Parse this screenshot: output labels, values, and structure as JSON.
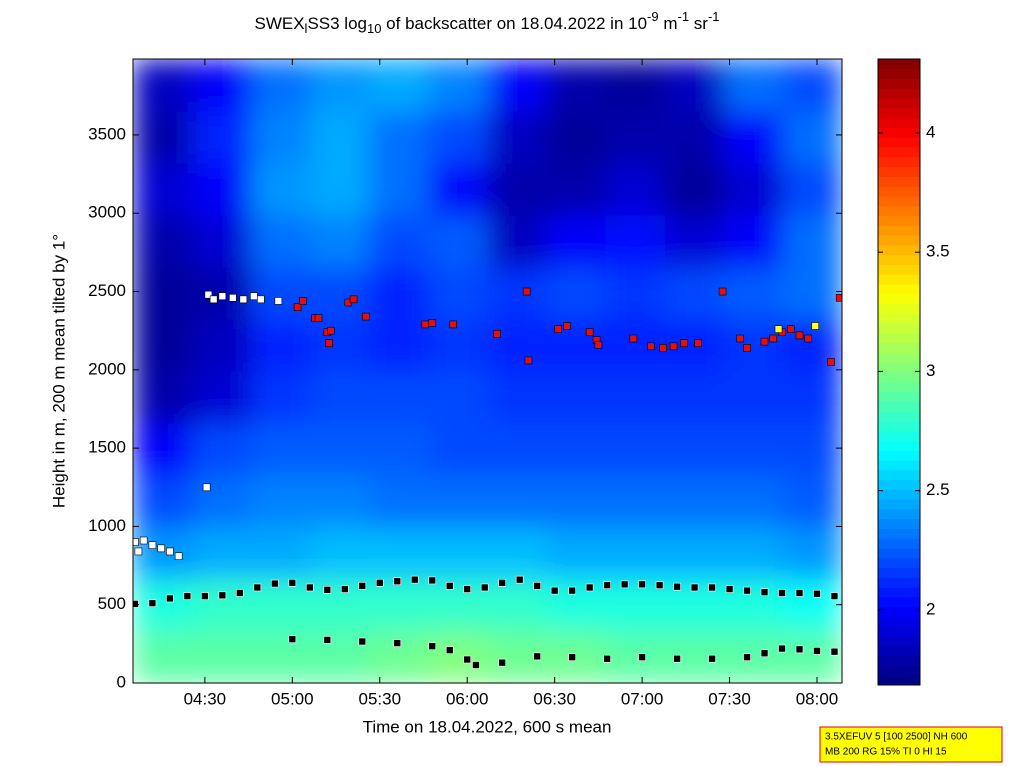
{
  "chart_data": {
    "type": "heatmap",
    "title_parts": [
      {
        "text": "SWEX"
      },
      {
        "text": "l",
        "script": "sub"
      },
      {
        "text": "SS3 log"
      },
      {
        "text": "10",
        "script": "sub"
      },
      {
        "text": " of backscatter on 18.04.2022 in 10"
      },
      {
        "text": "-9",
        "script": "sup"
      },
      {
        "text": " m"
      },
      {
        "text": "-1",
        "script": "sup"
      },
      {
        "text": " sr"
      },
      {
        "text": "-1",
        "script": "sup"
      }
    ],
    "xlabel": "Time on 18.04.2022, 600 s mean",
    "ylabel": "Height in m, 200 m mean tilted by 1°",
    "xlim": [
      4.089,
      8.143
    ],
    "xticks": [
      {
        "value": 4.5,
        "label": "04:30"
      },
      {
        "value": 5.0,
        "label": "05:00"
      },
      {
        "value": 5.5,
        "label": "05:30"
      },
      {
        "value": 6.0,
        "label": "06:00"
      },
      {
        "value": 6.5,
        "label": "06:30"
      },
      {
        "value": 7.0,
        "label": "07:00"
      },
      {
        "value": 7.5,
        "label": "07:30"
      },
      {
        "value": 8.0,
        "label": "08:00"
      }
    ],
    "ylim": [
      0,
      3985
    ],
    "yticks": [
      0,
      500,
      1000,
      1500,
      2000,
      2500,
      3000,
      3500
    ],
    "colormap": "jet",
    "clim": [
      1.685,
      4.31
    ],
    "cticks": [
      2,
      2.5,
      3,
      3.5,
      4
    ],
    "z": [
      [
        2.9,
        2.9,
        2.9,
        2.9,
        2.95,
        3.0,
        2.95,
        2.95,
        2.9,
        2.9,
        2.9,
        2.9
      ],
      [
        2.75,
        2.8,
        2.8,
        2.8,
        2.8,
        2.8,
        2.8,
        2.75,
        2.75,
        2.75,
        2.75,
        2.7
      ],
      [
        2.4,
        2.45,
        2.45,
        2.5,
        2.5,
        2.5,
        2.5,
        2.45,
        2.45,
        2.45,
        2.45,
        2.4
      ],
      [
        2.2,
        2.3,
        2.35,
        2.35,
        2.3,
        2.3,
        2.3,
        2.3,
        2.3,
        2.3,
        2.3,
        2.25
      ],
      [
        2.0,
        2.2,
        2.25,
        2.25,
        2.25,
        2.2,
        2.2,
        2.2,
        2.2,
        2.2,
        2.2,
        2.2
      ],
      [
        1.8,
        1.9,
        2.15,
        2.2,
        2.2,
        2.2,
        2.15,
        2.15,
        2.15,
        2.15,
        2.15,
        2.15
      ],
      [
        1.75,
        1.85,
        2.1,
        2.15,
        2.1,
        2.15,
        2.1,
        2.1,
        2.1,
        2.1,
        2.15,
        2.1
      ],
      [
        1.75,
        1.8,
        2.2,
        2.2,
        2.1,
        2.2,
        2.15,
        2.2,
        2.15,
        2.2,
        2.25,
        2.3
      ],
      [
        1.8,
        1.9,
        2.3,
        2.35,
        2.2,
        2.25,
        1.85,
        2.0,
        2.05,
        1.9,
        2.0,
        2.3
      ],
      [
        1.9,
        2.0,
        2.4,
        2.45,
        2.3,
        2.0,
        1.8,
        1.8,
        1.9,
        1.75,
        1.9,
        2.2
      ],
      [
        1.8,
        2.1,
        2.35,
        2.45,
        2.3,
        2.2,
        1.85,
        1.75,
        1.8,
        1.8,
        2.0,
        2.3
      ],
      [
        1.85,
        2.0,
        2.3,
        2.4,
        2.45,
        2.35,
        2.0,
        1.8,
        1.75,
        1.85,
        2.3,
        2.2
      ]
    ],
    "series": [
      {
        "type": "scatter",
        "color": "#000000",
        "x": [
          4.1,
          4.2,
          4.3,
          4.4,
          4.5,
          4.6,
          4.7,
          4.8,
          4.9,
          5.0,
          5.1,
          5.2,
          5.3,
          5.4,
          5.5,
          5.6,
          5.7,
          5.8,
          5.9,
          6.0,
          6.1,
          6.2,
          6.3,
          6.4,
          6.5,
          6.6,
          6.7,
          6.8,
          6.9,
          7.0,
          7.1,
          7.2,
          7.3,
          7.4,
          7.5,
          7.6,
          7.7,
          7.8,
          7.9,
          8.0,
          8.1
        ],
        "values": [
          505,
          510,
          540,
          555,
          555,
          560,
          575,
          610,
          635,
          640,
          610,
          595,
          600,
          620,
          640,
          650,
          660,
          655,
          620,
          600,
          610,
          640,
          660,
          620,
          590,
          590,
          610,
          625,
          630,
          630,
          625,
          615,
          610,
          610,
          600,
          590,
          580,
          575,
          575,
          570,
          555
        ]
      },
      {
        "type": "scatter",
        "color": "#000000",
        "x": [
          5.0,
          5.2,
          5.4,
          5.6,
          5.8,
          5.9,
          6.0,
          6.05,
          6.2,
          6.4,
          6.6,
          6.8,
          7.0,
          7.2,
          7.4,
          7.6,
          7.7,
          7.8,
          7.9,
          8.0,
          8.1
        ],
        "values": [
          280,
          275,
          265,
          255,
          235,
          210,
          150,
          115,
          130,
          170,
          165,
          155,
          165,
          155,
          155,
          165,
          190,
          220,
          215,
          205,
          200
        ]
      },
      {
        "type": "scatter",
        "color": "#e01010",
        "x": [
          5.03,
          5.06,
          5.13,
          5.15,
          5.2,
          5.21,
          5.22,
          5.32,
          5.35,
          5.42,
          5.76,
          5.8,
          5.92,
          6.17,
          6.34,
          6.35,
          6.52,
          6.57,
          6.7,
          6.74,
          6.75,
          6.95,
          7.05,
          7.12,
          7.18,
          7.24,
          7.32,
          7.46,
          7.56,
          7.6,
          7.7,
          7.75,
          7.8,
          7.85,
          7.9,
          7.95,
          8.08,
          8.13
        ],
        "values": [
          2400,
          2440,
          2330,
          2330,
          2240,
          2170,
          2250,
          2430,
          2450,
          2340,
          2290,
          2300,
          2290,
          2230,
          2500,
          2060,
          2260,
          2280,
          2240,
          2190,
          2160,
          2200,
          2150,
          2140,
          2150,
          2170,
          2170,
          2500,
          2200,
          2140,
          2180,
          2200,
          2240,
          2260,
          2220,
          2200,
          2050,
          2460
        ]
      },
      {
        "type": "scatter",
        "color": "#ffffff",
        "x": [
          4.52,
          4.55,
          4.6,
          4.66,
          4.72,
          4.78,
          4.82,
          4.92,
          4.51,
          4.1,
          4.12,
          4.15,
          4.2,
          4.25,
          4.3,
          4.35
        ],
        "values": [
          2480,
          2450,
          2470,
          2460,
          2450,
          2470,
          2450,
          2440,
          1250,
          900,
          840,
          910,
          880,
          860,
          840,
          810
        ]
      },
      {
        "type": "scatter",
        "color": "#ffff30",
        "x": [
          7.78,
          7.99
        ],
        "values": [
          2260,
          2280
        ]
      }
    ],
    "annotation": [
      "3.5XEFUV 5 [100 2500] NH 600",
      "MB 200 RG 15% TI 0 HI 15"
    ]
  }
}
